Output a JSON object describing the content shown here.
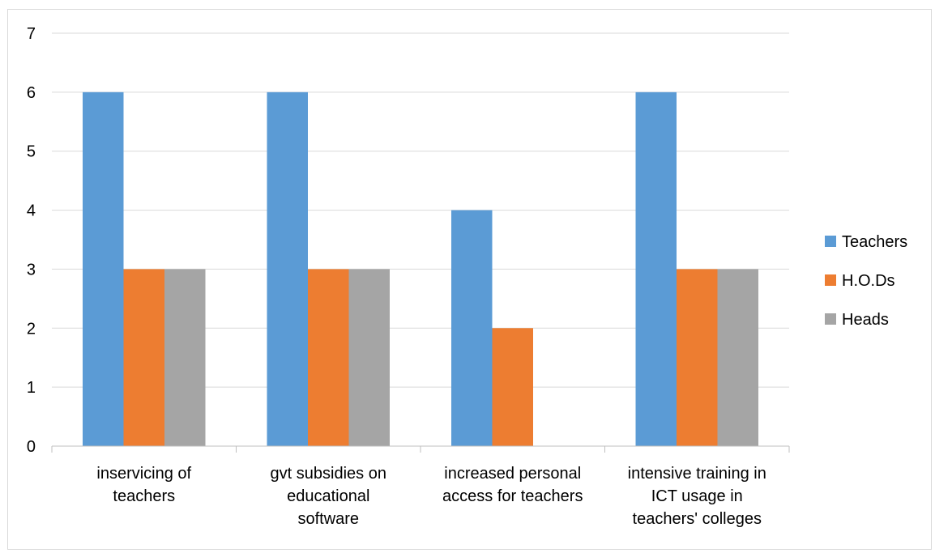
{
  "chart_data": {
    "type": "bar",
    "title": "",
    "xlabel": "",
    "ylabel": "",
    "ylim": [
      0,
      7
    ],
    "yticks": [
      0,
      1,
      2,
      3,
      4,
      5,
      6,
      7
    ],
    "grid": true,
    "legend_position": "right",
    "categories": [
      [
        "inservicing of",
        "teachers"
      ],
      [
        "gvt subsidies on",
        "educational",
        "software"
      ],
      [
        "increased personal",
        "access for teachers"
      ],
      [
        "intensive training in",
        "ICT usage in",
        "teachers' colleges"
      ]
    ],
    "series": [
      {
        "name": "Teachers",
        "color": "#5b9bd5",
        "values": [
          6,
          6,
          4,
          6
        ]
      },
      {
        "name": "H.O.Ds",
        "color": "#ed7d31",
        "values": [
          3,
          3,
          2,
          3
        ]
      },
      {
        "name": "Heads",
        "color": "#a5a5a5",
        "values": [
          3,
          3,
          0,
          3
        ]
      }
    ]
  }
}
